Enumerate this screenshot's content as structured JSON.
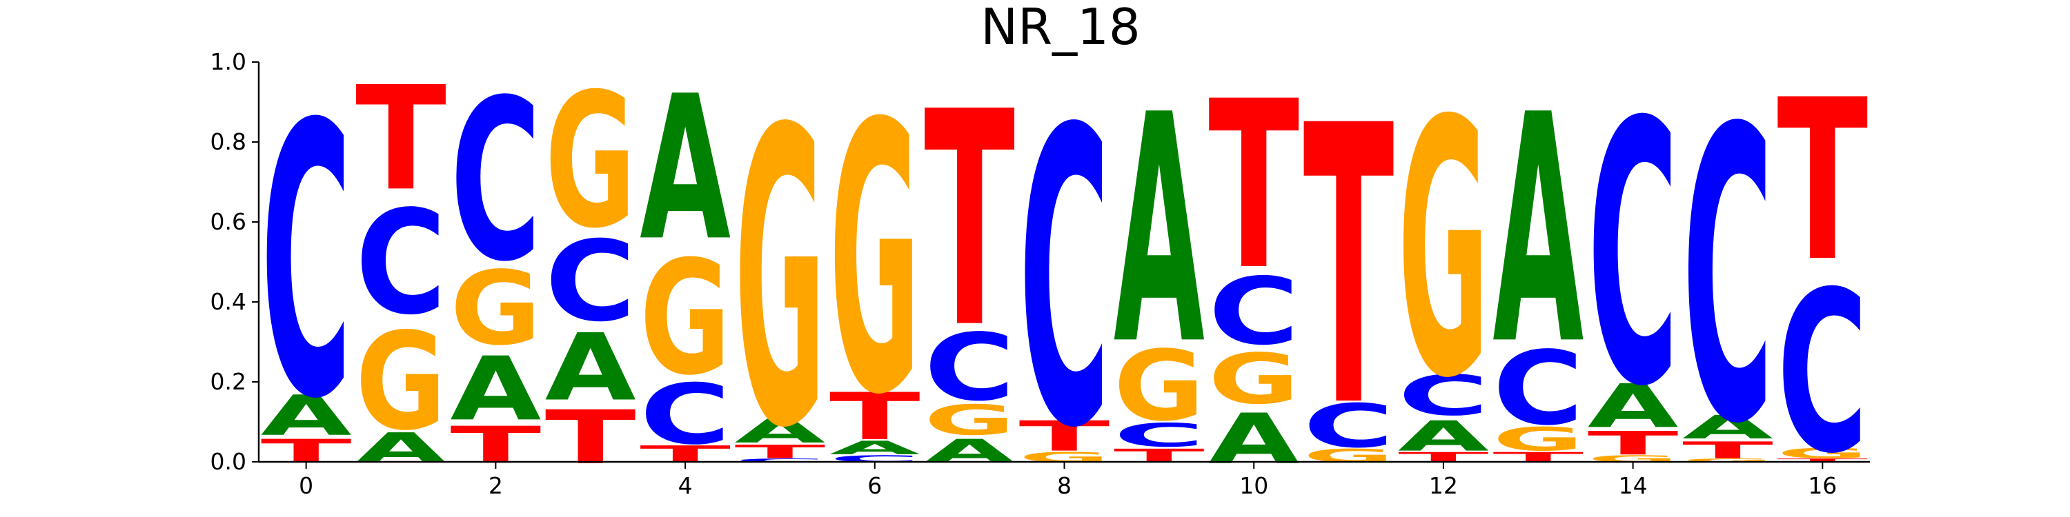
{
  "chart_data": {
    "type": "sequence-logo",
    "title": "NR_18",
    "xlabel": "",
    "ylabel": "",
    "xlim": [
      -0.5,
      16.5
    ],
    "ylim": [
      0,
      1
    ],
    "x_ticks": [
      0,
      2,
      4,
      6,
      8,
      10,
      12,
      14,
      16
    ],
    "y_ticks": [
      0.0,
      0.2,
      0.4,
      0.6,
      0.8,
      1.0
    ],
    "grid": false,
    "legend": "none",
    "colors": {
      "A": "#008000",
      "C": "#0000ff",
      "G": "#ffa500",
      "T": "#ff0000"
    },
    "positions": [
      {
        "x": 0,
        "stack": [
          {
            "base": "T",
            "value": 0.07
          },
          {
            "base": "A",
            "value": 0.12
          },
          {
            "base": "C",
            "value": 0.81
          }
        ]
      },
      {
        "x": 1,
        "stack": [
          {
            "base": "A",
            "value": 0.09
          },
          {
            "base": "G",
            "value": 0.29
          },
          {
            "base": "C",
            "value": 0.31
          },
          {
            "base": "T",
            "value": 0.31
          }
        ]
      },
      {
        "x": 2,
        "stack": [
          {
            "base": "T",
            "value": 0.11
          },
          {
            "base": "A",
            "value": 0.19
          },
          {
            "base": "G",
            "value": 0.22
          },
          {
            "base": "C",
            "value": 0.48
          }
        ]
      },
      {
        "x": 3,
        "stack": [
          {
            "base": "T",
            "value": 0.16
          },
          {
            "base": "A",
            "value": 0.2
          },
          {
            "base": "C",
            "value": 0.24
          },
          {
            "base": "G",
            "value": 0.4
          }
        ]
      },
      {
        "x": 4,
        "stack": [
          {
            "base": "T",
            "value": 0.05
          },
          {
            "base": "C",
            "value": 0.18
          },
          {
            "base": "G",
            "value": 0.34
          },
          {
            "base": "A",
            "value": 0.43
          }
        ]
      },
      {
        "x": 5,
        "stack": [
          {
            "base": "C",
            "value": 0.01
          },
          {
            "base": "T",
            "value": 0.04
          },
          {
            "base": "A",
            "value": 0.07
          },
          {
            "base": "G",
            "value": 0.88
          }
        ]
      },
      {
        "x": 6,
        "stack": [
          {
            "base": "C",
            "value": 0.02
          },
          {
            "base": "A",
            "value": 0.04
          },
          {
            "base": "T",
            "value": 0.14
          },
          {
            "base": "G",
            "value": 0.8
          }
        ]
      },
      {
        "x": 7,
        "stack": [
          {
            "base": "A",
            "value": 0.07
          },
          {
            "base": "G",
            "value": 0.09
          },
          {
            "base": "C",
            "value": 0.2
          },
          {
            "base": "T",
            "value": 0.64
          }
        ]
      },
      {
        "x": 8,
        "stack": [
          {
            "base": "G",
            "value": 0.03
          },
          {
            "base": "T",
            "value": 0.09
          },
          {
            "base": "C",
            "value": 0.88
          }
        ]
      },
      {
        "x": 9,
        "stack": [
          {
            "base": "T",
            "value": 0.04
          },
          {
            "base": "C",
            "value": 0.07
          },
          {
            "base": "G",
            "value": 0.21
          },
          {
            "base": "A",
            "value": 0.68
          }
        ]
      },
      {
        "x": 10,
        "stack": [
          {
            "base": "A",
            "value": 0.15
          },
          {
            "base": "G",
            "value": 0.15
          },
          {
            "base": "C",
            "value": 0.2
          },
          {
            "base": "T",
            "value": 0.5
          }
        ]
      },
      {
        "x": 11,
        "stack": [
          {
            "base": "G",
            "value": 0.04
          },
          {
            "base": "C",
            "value": 0.13
          },
          {
            "base": "T",
            "value": 0.83
          }
        ]
      },
      {
        "x": 12,
        "stack": [
          {
            "base": "T",
            "value": 0.03
          },
          {
            "base": "A",
            "value": 0.09
          },
          {
            "base": "C",
            "value": 0.12
          },
          {
            "base": "G",
            "value": 0.76
          }
        ]
      },
      {
        "x": 13,
        "stack": [
          {
            "base": "T",
            "value": 0.03
          },
          {
            "base": "G",
            "value": 0.07
          },
          {
            "base": "C",
            "value": 0.22
          },
          {
            "base": "A",
            "value": 0.68
          }
        ]
      },
      {
        "x": 14,
        "stack": [
          {
            "base": "G",
            "value": 0.02
          },
          {
            "base": "T",
            "value": 0.07
          },
          {
            "base": "A",
            "value": 0.13
          },
          {
            "base": "C",
            "value": 0.78
          }
        ]
      },
      {
        "x": 15,
        "stack": [
          {
            "base": "G",
            "value": 0.01
          },
          {
            "base": "T",
            "value": 0.05
          },
          {
            "base": "A",
            "value": 0.07
          },
          {
            "base": "C",
            "value": 0.87
          }
        ]
      },
      {
        "x": 16,
        "stack": [
          {
            "base": "T",
            "value": 0.01
          },
          {
            "base": "G",
            "value": 0.03
          },
          {
            "base": "C",
            "value": 0.48
          },
          {
            "base": "T",
            "value": 0.48
          }
        ]
      }
    ]
  }
}
